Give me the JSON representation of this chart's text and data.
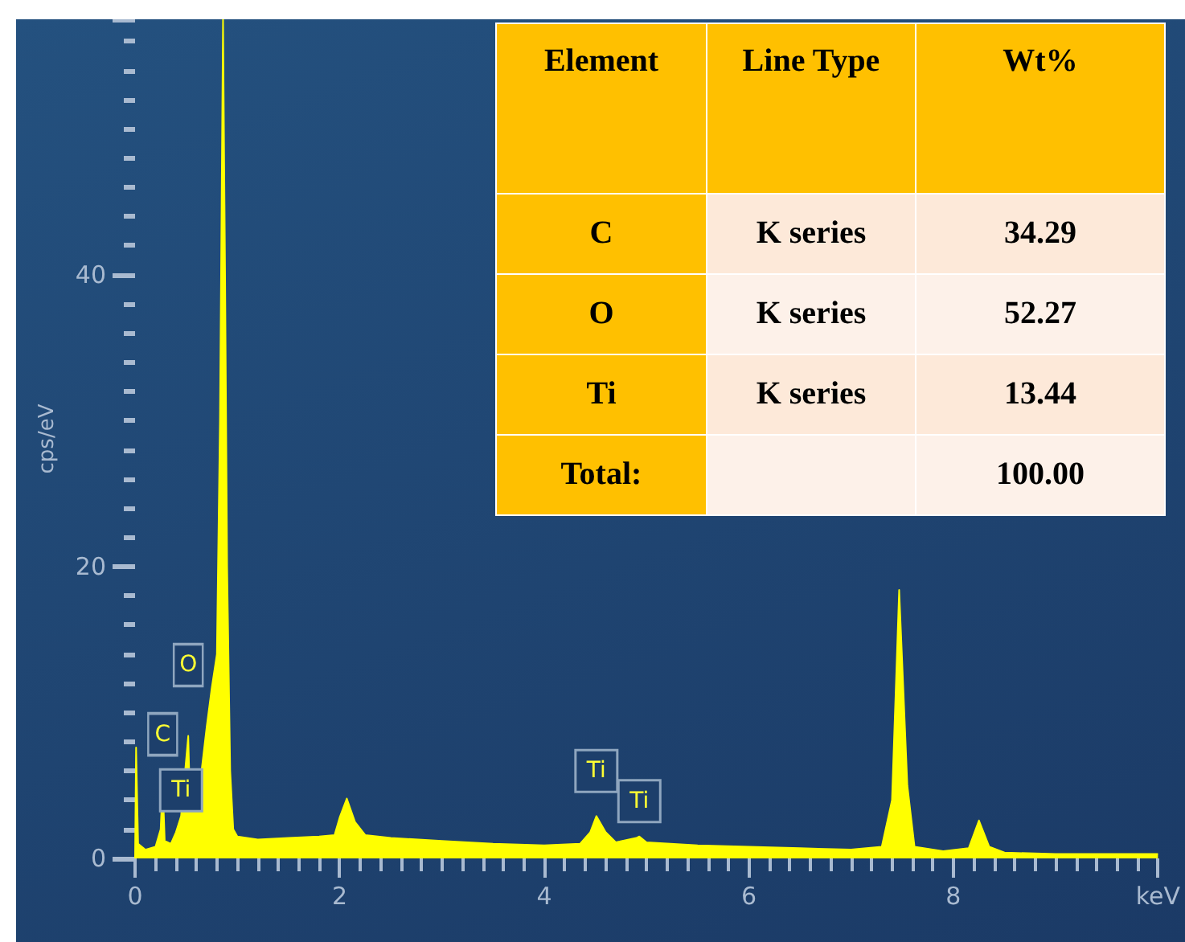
{
  "chart_data": [
    {
      "type": "area",
      "ylabel": "cps/eV",
      "xlim": [
        0,
        10
      ],
      "ylim": [
        0,
        57.5
      ],
      "xticks": [
        0,
        2,
        4,
        6,
        8,
        {
          "value": 10,
          "label": "keV"
        }
      ],
      "yticks": [
        0,
        20,
        40
      ],
      "grid": false,
      "marker": "none",
      "x": [
        0,
        0.01,
        0.03,
        0.1,
        0.2,
        0.25,
        0.27,
        0.29,
        0.35,
        0.4,
        0.45,
        0.52,
        0.54,
        0.65,
        0.7,
        0.75,
        0.8,
        0.83,
        0.86,
        0.88,
        0.9,
        0.93,
        0.96,
        1.0,
        1.2,
        1.5,
        1.8,
        1.95,
        2.0,
        2.07,
        2.15,
        2.25,
        2.5,
        3.0,
        3.5,
        4.0,
        4.35,
        4.45,
        4.51,
        4.6,
        4.7,
        4.9,
        4.93,
        5.0,
        5.5,
        6.0,
        6.5,
        7.0,
        7.3,
        7.4,
        7.47,
        7.55,
        7.62,
        7.9,
        8.15,
        8.25,
        8.35,
        8.5,
        9.0,
        9.5,
        10.0
      ],
      "series": [
        {
          "color": "#ffff00",
          "values": [
            0,
            7.6,
            1.0,
            0.6,
            0.8,
            2,
            5.2,
            1.2,
            1.0,
            1.8,
            2.9,
            8.4,
            3.0,
            6,
            9,
            11.7,
            14,
            30,
            57.5,
            40,
            20,
            6,
            2,
            1.5,
            1.3,
            1.4,
            1.5,
            1.6,
            2.8,
            4.1,
            2.5,
            1.6,
            1.4,
            1.2,
            1.0,
            0.9,
            1.0,
            1.8,
            2.9,
            1.8,
            1.1,
            1.4,
            1.5,
            1.1,
            0.9,
            0.8,
            0.7,
            0.6,
            0.8,
            4,
            18.4,
            5,
            0.8,
            0.5,
            0.7,
            2.6,
            0.8,
            0.4,
            0.3,
            0.3,
            0.3
          ]
        }
      ],
      "annotations": [
        {
          "text": "C",
          "x": 0.27,
          "y": 5.2
        },
        {
          "text": "O",
          "x": 0.52,
          "y": 8.4
        },
        {
          "text": "Ti",
          "x": 0.45,
          "y": 2.9
        },
        {
          "text": "Ti",
          "x": 4.51,
          "y": 2.9
        },
        {
          "text": "Ti",
          "x": 4.93,
          "y": 1.5
        }
      ]
    },
    {
      "type": "other",
      "categories": [
        "Element",
        "Line Type",
        "Wt%"
      ],
      "y_categories": [
        "C",
        "O",
        "Ti",
        "Total:"
      ],
      "cell_labels": [
        [
          "K series",
          "34.29"
        ],
        [
          "K series",
          "52.27"
        ],
        [
          "K series",
          "13.44"
        ],
        [
          null,
          "100.00"
        ]
      ]
    }
  ]
}
